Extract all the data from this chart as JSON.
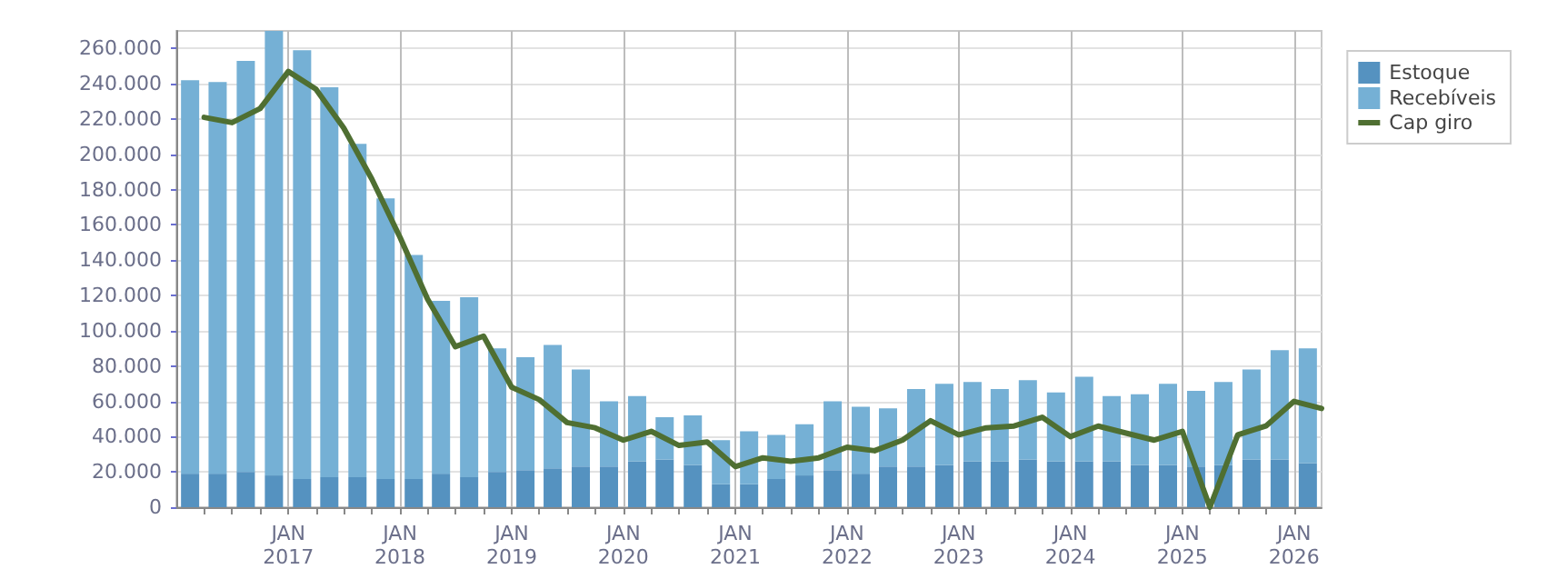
{
  "chart_data": {
    "type": "bar",
    "stacked": true,
    "grid": true,
    "legend": "right",
    "marker": "none",
    "line_style": "solid",
    "x": [
      "2016-02-15",
      "2016-05-15",
      "2016-08-15",
      "2016-11-15",
      "2017-02-15",
      "2017-05-15",
      "2017-08-15",
      "2017-11-15",
      "2018-02-15",
      "2018-05-15",
      "2018-08-15",
      "2018-11-15",
      "2019-02-15",
      "2019-05-15",
      "2019-08-15",
      "2019-11-15",
      "2020-02-15",
      "2020-05-15",
      "2020-08-15",
      "2020-11-15",
      "2021-02-15",
      "2021-05-15",
      "2021-08-15",
      "2021-11-15",
      "2022-02-15",
      "2022-05-15",
      "2022-08-15",
      "2022-11-15",
      "2023-02-15",
      "2023-05-15",
      "2023-08-15",
      "2023-11-15",
      "2024-02-15",
      "2024-05-15",
      "2024-08-15",
      "2024-11-15",
      "2025-02-15",
      "2025-05-15",
      "2025-08-15",
      "2025-11-15",
      "2026-02-15"
    ],
    "series": [
      {
        "name": "Estoque",
        "color": "#5592c0",
        "values": [
          19000,
          19000,
          20000,
          18000,
          16000,
          17000,
          17000,
          16000,
          16000,
          19000,
          17000,
          20000,
          21000,
          22000,
          23000,
          23000,
          26000,
          27000,
          24000,
          13000,
          13000,
          16000,
          18000,
          21000,
          19000,
          23000,
          23000,
          24000,
          26000,
          26000,
          27000,
          26000,
          26000,
          26000,
          24000,
          24000,
          23000,
          24000,
          27000,
          27000,
          25000
        ]
      },
      {
        "name": "Recebíveis",
        "color": "#75b0d5",
        "values": [
          223000,
          222000,
          233000,
          252000,
          243000,
          221000,
          189000,
          159000,
          127000,
          98000,
          102000,
          70000,
          64000,
          70000,
          55000,
          37000,
          37000,
          24000,
          28000,
          25000,
          30000,
          25000,
          29000,
          39000,
          38000,
          33000,
          44000,
          46000,
          45000,
          41000,
          45000,
          39000,
          48000,
          37000,
          40000,
          46000,
          43000,
          47000,
          51000,
          62000,
          65000
        ]
      },
      {
        "name": "Cap giro",
        "type": "line",
        "color": "#4f6f32",
        "x": [
          "2016-04-01",
          "2016-07-01",
          "2016-10-01",
          "2017-01-01",
          "2017-04-01",
          "2017-07-01",
          "2017-10-01",
          "2018-01-01",
          "2018-04-01",
          "2018-07-01",
          "2018-10-01",
          "2019-01-01",
          "2019-04-01",
          "2019-07-01",
          "2019-10-01",
          "2020-01-01",
          "2020-04-01",
          "2020-07-01",
          "2020-10-01",
          "2021-01-01",
          "2021-04-01",
          "2021-07-01",
          "2021-10-01",
          "2022-01-01",
          "2022-04-01",
          "2022-07-01",
          "2022-10-01",
          "2023-01-01",
          "2023-04-01",
          "2023-07-01",
          "2023-10-01",
          "2024-01-01",
          "2024-04-01",
          "2024-07-01",
          "2024-10-01",
          "2025-01-01",
          "2025-04-01",
          "2025-07-01",
          "2025-10-01",
          "2026-01-01",
          "2026-04-01"
        ],
        "values": [
          221000,
          218000,
          226000,
          247000,
          237000,
          215000,
          186000,
          153000,
          118000,
          91000,
          97000,
          68000,
          61000,
          48000,
          45000,
          38000,
          43000,
          35000,
          37000,
          23000,
          28000,
          26000,
          28000,
          34000,
          32000,
          38000,
          49000,
          41000,
          45000,
          46000,
          51000,
          40000,
          46000,
          42000,
          38000,
          43000,
          0,
          41000,
          46000,
          60000,
          56000
        ]
      }
    ],
    "xlim": [
      "2016-01-01",
      "2026-04-01"
    ],
    "xticks": [
      {
        "value": "2016-04-01",
        "label": null
      },
      {
        "value": "2016-07-01",
        "label": null
      },
      {
        "value": "2016-10-01",
        "label": null
      },
      {
        "value": "2017-01-01",
        "label": "JAN\n2017"
      },
      {
        "value": "2017-04-01",
        "label": null
      },
      {
        "value": "2017-07-01",
        "label": null
      },
      {
        "value": "2017-10-01",
        "label": null
      },
      {
        "value": "2018-01-01",
        "label": "JAN\n2018"
      },
      {
        "value": "2018-04-01",
        "label": null
      },
      {
        "value": "2018-07-01",
        "label": null
      },
      {
        "value": "2018-10-01",
        "label": null
      },
      {
        "value": "2019-01-01",
        "label": "JAN\n2019"
      },
      {
        "value": "2019-04-01",
        "label": null
      },
      {
        "value": "2019-07-01",
        "label": null
      },
      {
        "value": "2019-10-01",
        "label": null
      },
      {
        "value": "2020-01-01",
        "label": "JAN\n2020"
      },
      {
        "value": "2020-04-01",
        "label": null
      },
      {
        "value": "2020-07-01",
        "label": null
      },
      {
        "value": "2020-10-01",
        "label": null
      },
      {
        "value": "2021-01-01",
        "label": "JAN\n2021"
      },
      {
        "value": "2021-04-01",
        "label": null
      },
      {
        "value": "2021-07-01",
        "label": null
      },
      {
        "value": "2021-10-01",
        "label": null
      },
      {
        "value": "2022-01-01",
        "label": "JAN\n2022"
      },
      {
        "value": "2022-04-01",
        "label": null
      },
      {
        "value": "2022-07-01",
        "label": null
      },
      {
        "value": "2022-10-01",
        "label": null
      },
      {
        "value": "2023-01-01",
        "label": "JAN\n2023"
      },
      {
        "value": "2023-04-01",
        "label": null
      },
      {
        "value": "2023-07-01",
        "label": null
      },
      {
        "value": "2023-10-01",
        "label": null
      },
      {
        "value": "2024-01-01",
        "label": "JAN\n2024"
      },
      {
        "value": "2024-04-01",
        "label": null
      },
      {
        "value": "2024-07-01",
        "label": null
      },
      {
        "value": "2024-10-01",
        "label": null
      },
      {
        "value": "2025-01-01",
        "label": "JAN\n2025"
      },
      {
        "value": "2025-04-01",
        "label": null
      },
      {
        "value": "2025-07-01",
        "label": null
      },
      {
        "value": "2025-10-01",
        "label": null
      },
      {
        "value": "2026-01-01",
        "label": "JAN\n2026"
      }
    ],
    "ylim": [
      0,
      270000
    ],
    "yticks": [
      0,
      {
        "value": 20000,
        "label": "20.000"
      },
      {
        "value": 40000,
        "label": "40.000"
      },
      {
        "value": 60000,
        "label": "60.000"
      },
      {
        "value": 80000,
        "label": "80.000"
      },
      {
        "value": 100000,
        "label": "100.000"
      },
      {
        "value": 120000,
        "label": "120.000"
      },
      {
        "value": 140000,
        "label": "140.000"
      },
      {
        "value": 160000,
        "label": "160.000"
      },
      {
        "value": 180000,
        "label": "180.000"
      },
      {
        "value": 200000,
        "label": "200.000"
      },
      {
        "value": 220000,
        "label": "220.000"
      },
      {
        "value": 240000,
        "label": "240.000"
      },
      {
        "value": 260000,
        "label": "260.000"
      }
    ]
  }
}
